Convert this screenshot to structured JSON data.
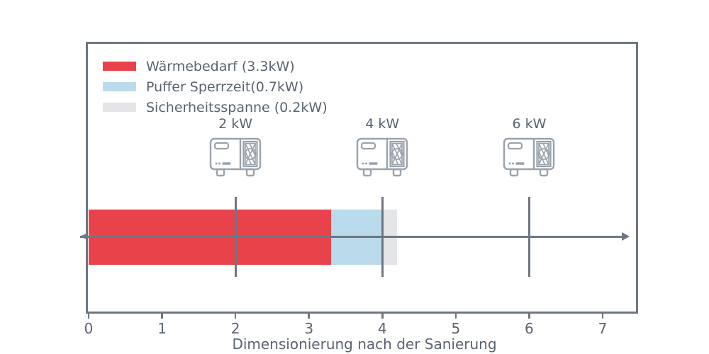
{
  "colors": {
    "heat_demand": "#e8434a",
    "buffer": "#b9dbeb",
    "safety": "#e3e5e9",
    "line": "#6e7683",
    "text": "#5a6370",
    "icon": "#9aa2ac"
  },
  "legend": {
    "items": [
      {
        "label": "Wärmebedarf (3.3kW)",
        "color_key": "heat_demand"
      },
      {
        "label": "Puffer Sperrzeit(0.7kW)",
        "color_key": "buffer"
      },
      {
        "label": "Sicherheitsspanne (0.2kW)",
        "color_key": "safety"
      }
    ]
  },
  "axis": {
    "title": "Dimensionierung nach der Sanierung",
    "xticks": [
      0,
      1,
      2,
      3,
      4,
      5,
      6,
      7
    ]
  },
  "chart_data": {
    "type": "bar",
    "orientation": "horizontal",
    "stacked": true,
    "series": [
      {
        "name": "Wärmebedarf (3.3kW)",
        "value_kw": 3.3,
        "color_key": "heat_demand"
      },
      {
        "name": "Puffer Sperrzeit(0.7kW)",
        "value_kw": 0.7,
        "color_key": "buffer"
      },
      {
        "name": "Sicherheitsspanne (0.2kW)",
        "value_kw": 0.2,
        "color_key": "safety"
      }
    ],
    "total_kw": 4.2,
    "pump_markers": [
      {
        "label": "2 kW",
        "value_kw": 2,
        "icon": "heat-pump-icon"
      },
      {
        "label": "4 kW",
        "value_kw": 4,
        "icon": "heat-pump-icon"
      },
      {
        "label": "6 kW",
        "value_kw": 6,
        "icon": "heat-pump-icon"
      }
    ],
    "xlabel": "Dimensionierung nach der Sanierung",
    "xlim": [
      0,
      7.5
    ],
    "xticks": [
      0,
      1,
      2,
      3,
      4,
      5,
      6,
      7
    ],
    "grid": false,
    "legend_position": "upper-left"
  }
}
